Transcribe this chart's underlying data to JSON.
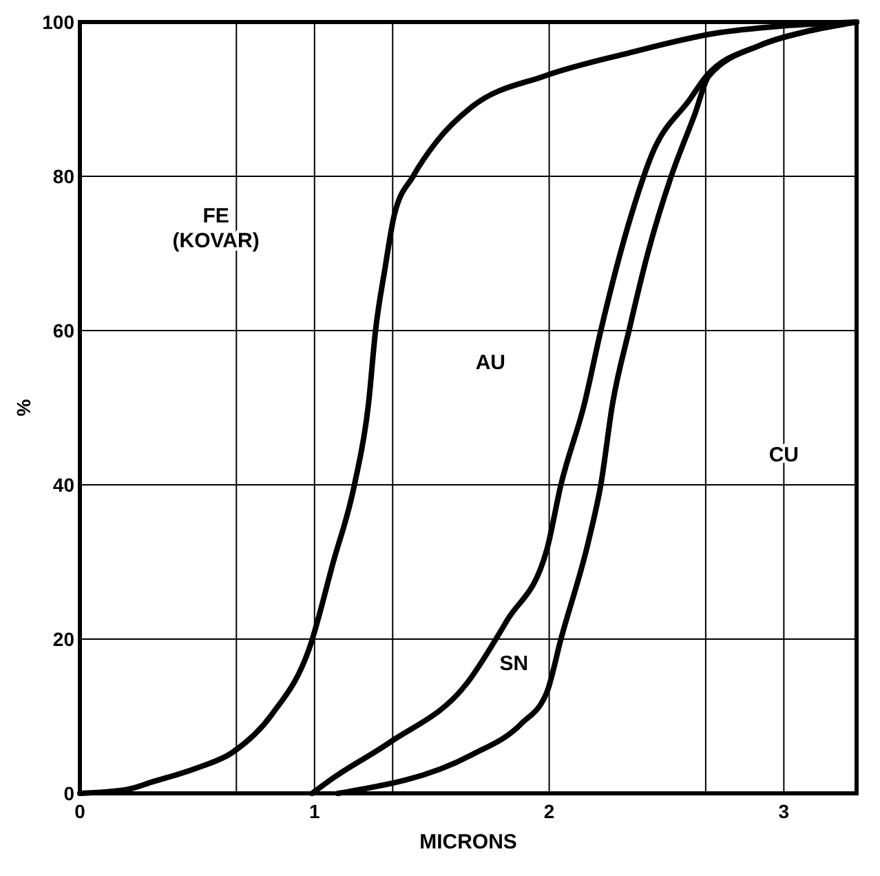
{
  "chart_data": {
    "type": "line",
    "xlabel": "MICRONS",
    "ylabel": "%",
    "xlim": [
      0,
      3.31
    ],
    "ylim": [
      0,
      100
    ],
    "xticks": [
      0,
      {
        "value": 0.667,
        "label": null
      },
      1,
      {
        "value": 1.333,
        "label": null
      },
      2,
      {
        "value": 2.667,
        "label": null
      },
      3
    ],
    "yticks": [
      0,
      20,
      40,
      60,
      80,
      100
    ],
    "grid": true,
    "marker": "none",
    "line_style": "solid",
    "series": [
      {
        "color": "#000000",
        "x": [
          0,
          0.2,
          0.31,
          0.5,
          0.65,
          0.82,
          0.98,
          1.08,
          1.17,
          1.23,
          1.26,
          1.3,
          1.34,
          1.42,
          1.52,
          1.67,
          1.98,
          2.34,
          2.7,
          3.0,
          3.31
        ],
        "values": [
          0,
          0.5,
          1.5,
          3.3,
          5.3,
          10.3,
          19,
          30,
          40,
          50.5,
          60,
          68,
          75,
          80,
          84.5,
          89,
          93,
          96,
          98.5,
          99.5,
          100
        ]
      },
      {
        "color": "#000000",
        "x": [
          0.99,
          1.08,
          1.32,
          1.65,
          1.82,
          1.99,
          2.05,
          2.15,
          2.22,
          2.35,
          2.44,
          2.6,
          2.67,
          2.9,
          3.1,
          3.31
        ],
        "values": [
          0,
          2,
          6.6,
          14.3,
          22.4,
          31.6,
          40,
          50.5,
          60,
          75,
          83,
          90,
          93,
          97,
          98.8,
          100
        ]
      },
      {
        "color": "#000000",
        "x": [
          1.1,
          1.67,
          1.88,
          1.99,
          2.05,
          2.17,
          2.22,
          2.27,
          2.34,
          2.42,
          2.52,
          2.62,
          2.68,
          2.9,
          3.1,
          3.31
        ],
        "values": [
          0,
          5,
          9,
          13.1,
          20,
          33,
          40,
          50.5,
          60,
          70,
          80,
          88,
          93,
          97,
          98.8,
          100
        ]
      }
    ],
    "annotations": [
      "FE\n(KOVAR)",
      "AU",
      "SN",
      "CU"
    ]
  }
}
